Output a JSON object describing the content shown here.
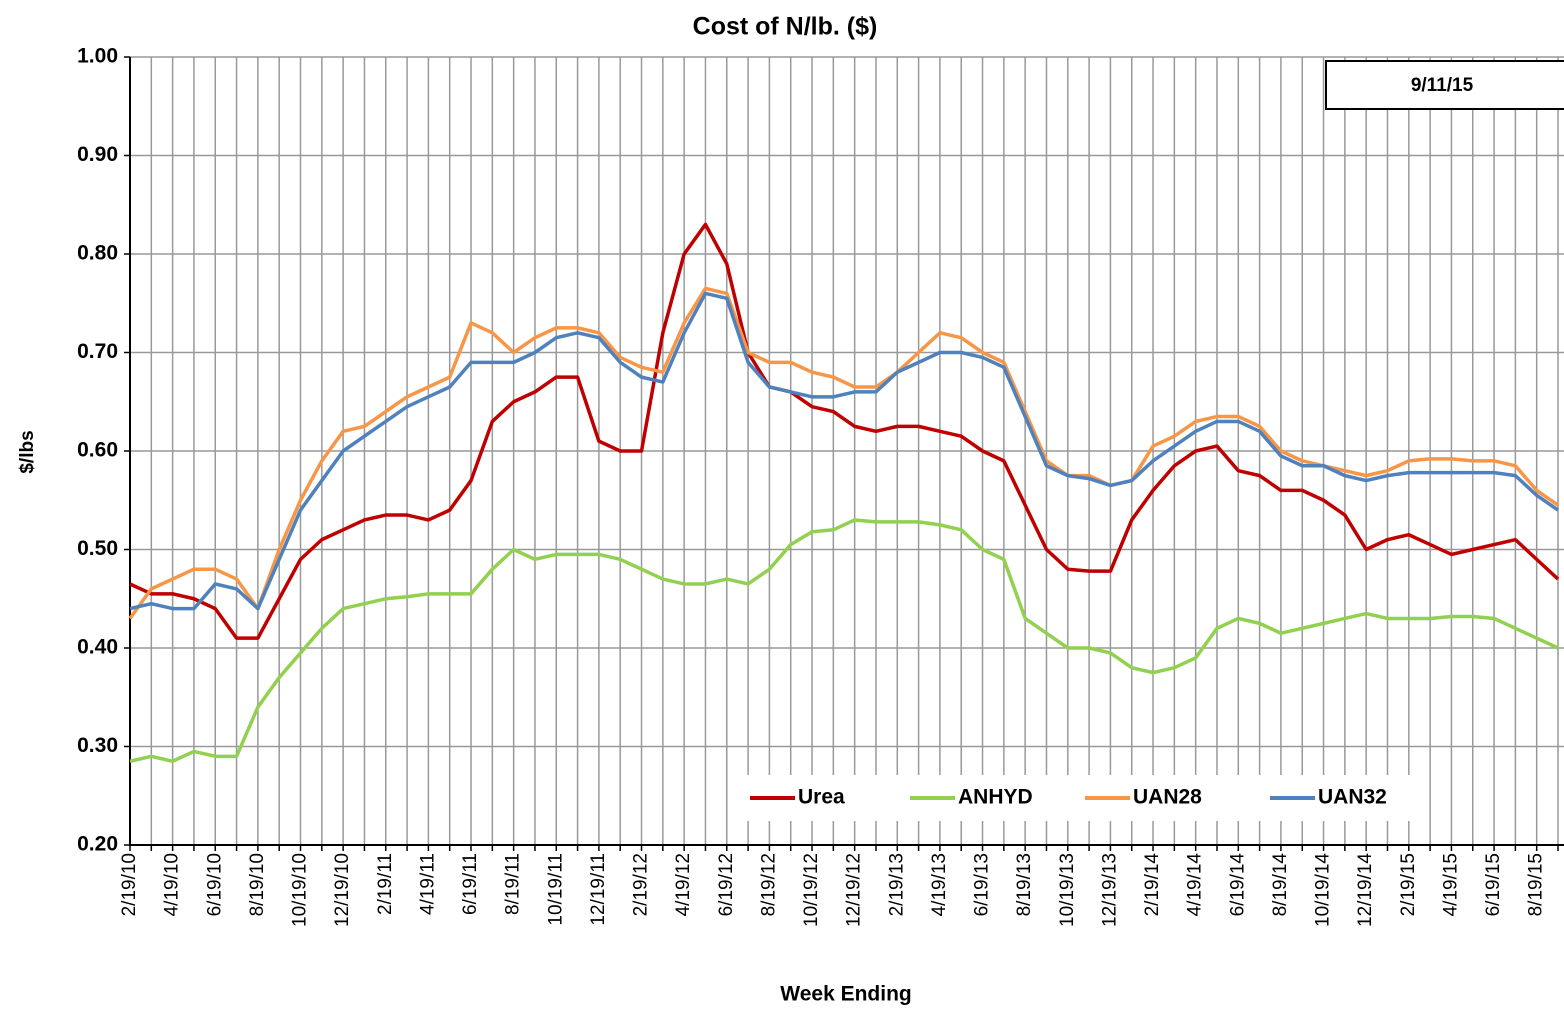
{
  "chart_data": {
    "type": "line",
    "title": "Cost of N/lb. ($)",
    "annotation": "9/11/15",
    "x_label": "Week Ending",
    "y_label": "$/lbs",
    "grid": true,
    "legend": "lower center",
    "categories": [
      "2/19/10",
      null,
      "4/19/10",
      null,
      "6/19/10",
      null,
      "8/19/10",
      null,
      "10/19/10",
      null,
      "12/19/10",
      null,
      "2/19/11",
      null,
      "4/19/11",
      null,
      "6/19/11",
      null,
      "8/19/11",
      null,
      "10/19/11",
      null,
      "12/19/11",
      null,
      "2/19/12",
      null,
      "4/19/12",
      null,
      "6/19/12",
      null,
      "8/19/12",
      null,
      "10/19/12",
      null,
      "12/19/12",
      null,
      "2/19/13",
      null,
      "4/19/13",
      null,
      "6/19/13",
      null,
      "8/19/13",
      null,
      "10/19/13",
      null,
      "12/19/13",
      null,
      "2/19/14",
      null,
      "4/19/14",
      null,
      "6/19/14",
      null,
      "8/19/14",
      null,
      "10/19/14",
      null,
      "12/19/14",
      null,
      "2/19/15",
      null,
      "4/19/15",
      null,
      "6/19/15",
      null,
      "8/19/15",
      null
    ],
    "ylim": [
      0.2,
      1.0
    ],
    "yticks": [
      {
        "value": 0.2,
        "label": "0.20"
      },
      {
        "value": 0.3,
        "label": "0.30"
      },
      {
        "value": 0.4,
        "label": "0.40"
      },
      {
        "value": 0.5,
        "label": "0.50"
      },
      {
        "value": 0.6,
        "label": "0.60"
      },
      {
        "value": 0.7,
        "label": "0.70"
      },
      {
        "value": 0.8,
        "label": "0.80"
      },
      {
        "value": 0.9,
        "label": "0.90"
      },
      {
        "value": 1.0,
        "label": "1.00"
      }
    ],
    "series": [
      {
        "name": "Urea",
        "color": "#c00000",
        "values": [
          0.465,
          0.455,
          0.455,
          0.45,
          0.44,
          0.41,
          0.41,
          0.45,
          0.49,
          0.51,
          0.52,
          0.53,
          0.535,
          0.535,
          0.53,
          0.54,
          0.57,
          0.63,
          0.65,
          0.66,
          0.675,
          0.675,
          0.61,
          0.6,
          0.6,
          0.72,
          0.8,
          0.83,
          0.79,
          0.7,
          0.665,
          0.66,
          0.645,
          0.64,
          0.625,
          0.62,
          0.625,
          0.625,
          0.62,
          0.615,
          0.6,
          0.59,
          0.545,
          0.5,
          0.48,
          0.478,
          0.478,
          0.53,
          0.56,
          0.585,
          0.6,
          0.605,
          0.58,
          0.575,
          0.56,
          0.56,
          0.55,
          0.535,
          0.5,
          0.51,
          0.515,
          0.505,
          0.495,
          0.5,
          0.505,
          0.51,
          0.49,
          0.47
        ]
      },
      {
        "name": "ANHYD",
        "color": "#92d050",
        "values": [
          0.285,
          0.29,
          0.285,
          0.295,
          0.29,
          0.29,
          0.34,
          0.37,
          0.395,
          0.42,
          0.44,
          0.445,
          0.45,
          0.452,
          0.455,
          0.455,
          0.455,
          0.48,
          0.5,
          0.49,
          0.495,
          0.495,
          0.495,
          0.49,
          0.48,
          0.47,
          0.465,
          0.465,
          0.47,
          0.465,
          0.48,
          0.505,
          0.518,
          0.52,
          0.53,
          0.528,
          0.528,
          0.528,
          0.525,
          0.52,
          0.5,
          0.49,
          0.43,
          0.415,
          0.4,
          0.4,
          0.395,
          0.38,
          0.375,
          0.38,
          0.39,
          0.42,
          0.43,
          0.425,
          0.415,
          0.42,
          0.425,
          0.43,
          0.435,
          0.43,
          0.43,
          0.43,
          0.432,
          0.432,
          0.43,
          0.42,
          0.41,
          0.4
        ]
      },
      {
        "name": "UAN28",
        "color": "#f79646",
        "values": [
          0.43,
          0.46,
          0.47,
          0.48,
          0.48,
          0.47,
          0.44,
          0.5,
          0.55,
          0.59,
          0.62,
          0.625,
          0.64,
          0.655,
          0.665,
          0.675,
          0.73,
          0.72,
          0.7,
          0.715,
          0.725,
          0.725,
          0.72,
          0.695,
          0.685,
          0.68,
          0.73,
          0.765,
          0.76,
          0.7,
          0.69,
          0.69,
          0.68,
          0.675,
          0.665,
          0.665,
          0.68,
          0.7,
          0.72,
          0.715,
          0.7,
          0.69,
          0.64,
          0.59,
          0.575,
          0.575,
          0.565,
          0.57,
          0.605,
          0.615,
          0.63,
          0.635,
          0.635,
          0.625,
          0.6,
          0.59,
          0.585,
          0.58,
          0.575,
          0.58,
          0.59,
          0.592,
          0.592,
          0.59,
          0.59,
          0.585,
          0.56,
          0.545
        ]
      },
      {
        "name": "UAN32",
        "color": "#4f81bd",
        "values": [
          0.44,
          0.445,
          0.44,
          0.44,
          0.465,
          0.46,
          0.44,
          0.49,
          0.54,
          0.57,
          0.6,
          0.615,
          0.63,
          0.645,
          0.655,
          0.665,
          0.69,
          0.69,
          0.69,
          0.7,
          0.715,
          0.72,
          0.715,
          0.69,
          0.675,
          0.67,
          0.72,
          0.76,
          0.755,
          0.69,
          0.665,
          0.66,
          0.655,
          0.655,
          0.66,
          0.66,
          0.68,
          0.69,
          0.7,
          0.7,
          0.695,
          0.685,
          0.635,
          0.585,
          0.575,
          0.572,
          0.565,
          0.57,
          0.59,
          0.605,
          0.62,
          0.63,
          0.63,
          0.62,
          0.595,
          0.585,
          0.585,
          0.575,
          0.57,
          0.575,
          0.578,
          0.578,
          0.578,
          0.578,
          0.578,
          0.575,
          0.555,
          0.54
        ]
      }
    ]
  }
}
